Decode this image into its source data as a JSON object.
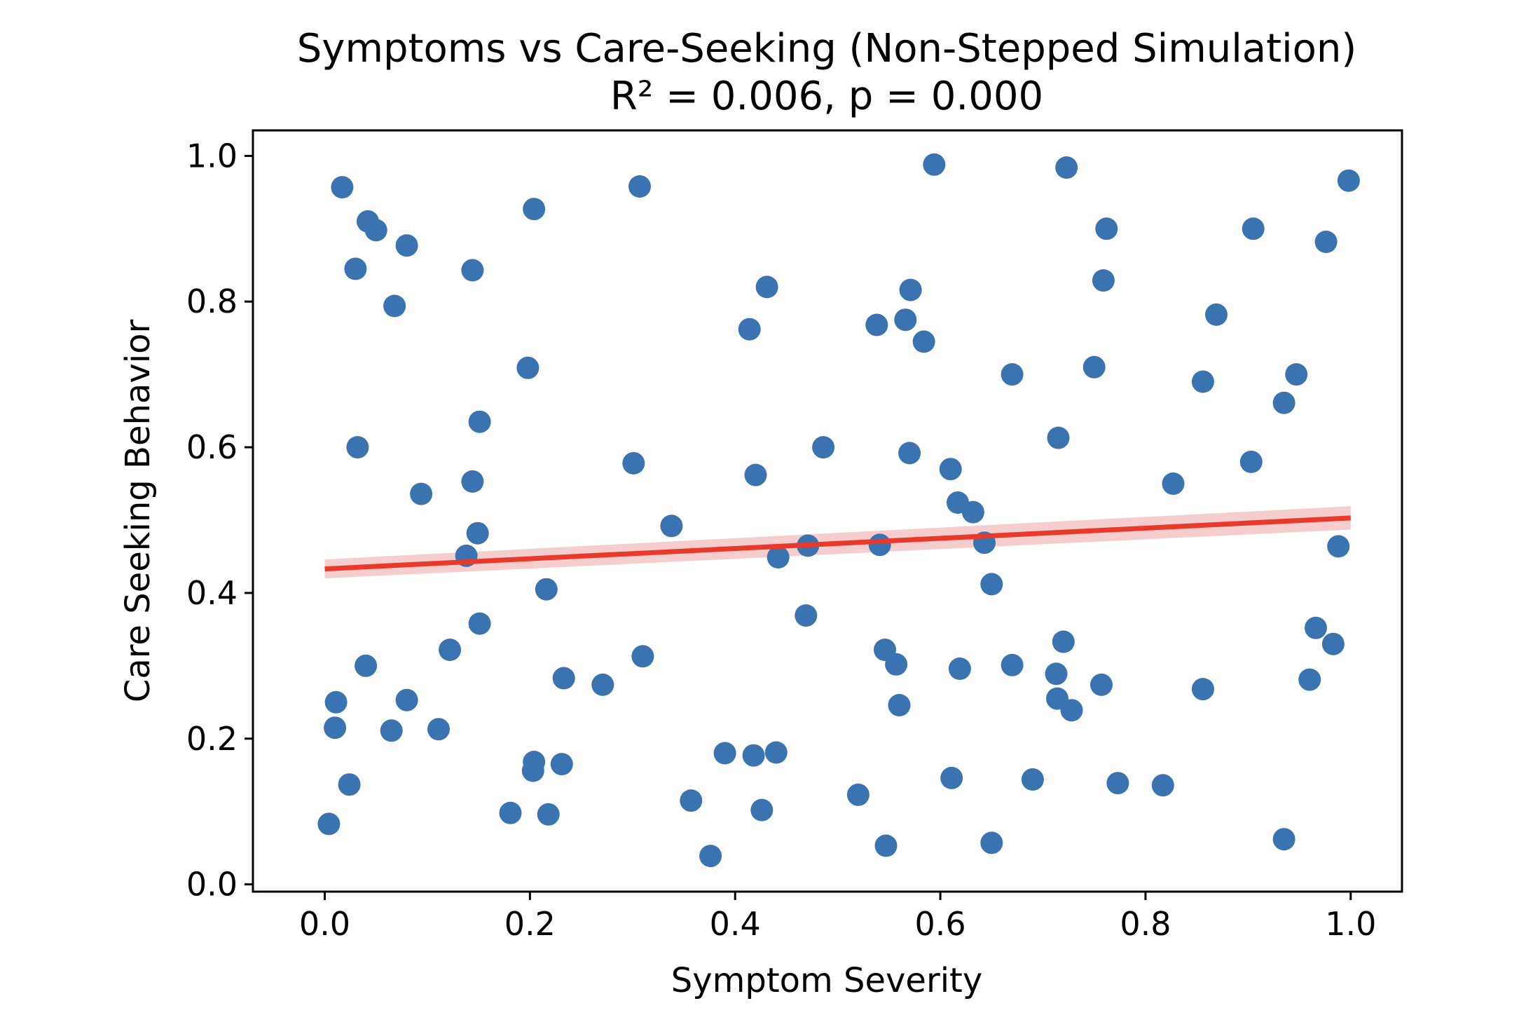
{
  "chart_data": {
    "type": "scatter",
    "title": "Symptoms vs Care-Seeking (Non-Stepped Simulation)",
    "subtitle": "R² = 0.006, p = 0.000",
    "xlabel": "Symptom Severity",
    "ylabel": "Care Seeking Behavior",
    "xlim": [
      -0.07,
      1.05
    ],
    "ylim": [
      -0.01,
      1.035
    ],
    "xticks": [
      0.0,
      0.2,
      0.4,
      0.6,
      0.8,
      1.0
    ],
    "yticks": [
      0.0,
      0.2,
      0.4,
      0.6,
      0.8,
      1.0
    ],
    "tick_labels_x": [
      "0.0",
      "0.2",
      "0.4",
      "0.6",
      "0.8",
      "1.0"
    ],
    "tick_labels_y": [
      "0.0",
      "0.2",
      "0.4",
      "0.6",
      "0.8",
      "1.0"
    ],
    "grid": false,
    "point_color": "#3b73b0",
    "line_color": "#e8392b",
    "ci_color": "#f2b8b8",
    "regression": {
      "x": [
        0.0,
        1.0
      ],
      "y": [
        0.433,
        0.503
      ],
      "ci_halfwidth": [
        0.013,
        0.016
      ]
    },
    "points": [
      [
        0.004,
        0.083
      ],
      [
        0.011,
        0.25
      ],
      [
        0.01,
        0.215
      ],
      [
        0.017,
        0.957
      ],
      [
        0.024,
        0.137
      ],
      [
        0.03,
        0.845
      ],
      [
        0.032,
        0.6
      ],
      [
        0.04,
        0.3
      ],
      [
        0.042,
        0.91
      ],
      [
        0.05,
        0.898
      ],
      [
        0.065,
        0.211
      ],
      [
        0.068,
        0.794
      ],
      [
        0.08,
        0.877
      ],
      [
        0.08,
        0.253
      ],
      [
        0.094,
        0.536
      ],
      [
        0.111,
        0.213
      ],
      [
        0.122,
        0.322
      ],
      [
        0.138,
        0.451
      ],
      [
        0.144,
        0.843
      ],
      [
        0.144,
        0.553
      ],
      [
        0.149,
        0.482
      ],
      [
        0.151,
        0.635
      ],
      [
        0.151,
        0.358
      ],
      [
        0.181,
        0.098
      ],
      [
        0.198,
        0.709
      ],
      [
        0.204,
        0.927
      ],
      [
        0.204,
        0.168
      ],
      [
        0.203,
        0.156
      ],
      [
        0.216,
        0.405
      ],
      [
        0.218,
        0.096
      ],
      [
        0.231,
        0.165
      ],
      [
        0.233,
        0.283
      ],
      [
        0.271,
        0.274
      ],
      [
        0.301,
        0.578
      ],
      [
        0.307,
        0.958
      ],
      [
        0.31,
        0.313
      ],
      [
        0.338,
        0.492
      ],
      [
        0.357,
        0.115
      ],
      [
        0.376,
        0.039
      ],
      [
        0.39,
        0.18
      ],
      [
        0.414,
        0.762
      ],
      [
        0.418,
        0.177
      ],
      [
        0.42,
        0.562
      ],
      [
        0.426,
        0.102
      ],
      [
        0.431,
        0.82
      ],
      [
        0.44,
        0.181
      ],
      [
        0.442,
        0.449
      ],
      [
        0.469,
        0.369
      ],
      [
        0.471,
        0.465
      ],
      [
        0.486,
        0.6
      ],
      [
        0.52,
        0.123
      ],
      [
        0.538,
        0.768
      ],
      [
        0.541,
        0.466
      ],
      [
        0.546,
        0.322
      ],
      [
        0.547,
        0.053
      ],
      [
        0.557,
        0.302
      ],
      [
        0.56,
        0.246
      ],
      [
        0.566,
        0.775
      ],
      [
        0.571,
        0.816
      ],
      [
        0.57,
        0.592
      ],
      [
        0.584,
        0.745
      ],
      [
        0.594,
        0.988
      ],
      [
        0.61,
        0.57
      ],
      [
        0.611,
        0.146
      ],
      [
        0.617,
        0.524
      ],
      [
        0.619,
        0.296
      ],
      [
        0.632,
        0.511
      ],
      [
        0.643,
        0.469
      ],
      [
        0.65,
        0.412
      ],
      [
        0.65,
        0.057
      ],
      [
        0.67,
        0.7
      ],
      [
        0.67,
        0.301
      ],
      [
        0.69,
        0.144
      ],
      [
        0.713,
        0.289
      ],
      [
        0.714,
        0.255
      ],
      [
        0.715,
        0.613
      ],
      [
        0.72,
        0.333
      ],
      [
        0.723,
        0.984
      ],
      [
        0.728,
        0.239
      ],
      [
        0.75,
        0.71
      ],
      [
        0.757,
        0.274
      ],
      [
        0.759,
        0.829
      ],
      [
        0.762,
        0.9
      ],
      [
        0.773,
        0.139
      ],
      [
        0.817,
        0.136
      ],
      [
        0.827,
        0.55
      ],
      [
        0.856,
        0.69
      ],
      [
        0.856,
        0.268
      ],
      [
        0.869,
        0.782
      ],
      [
        0.903,
        0.58
      ],
      [
        0.905,
        0.9
      ],
      [
        0.935,
        0.661
      ],
      [
        0.935,
        0.062
      ],
      [
        0.947,
        0.7
      ],
      [
        0.96,
        0.281
      ],
      [
        0.966,
        0.352
      ],
      [
        0.976,
        0.882
      ],
      [
        0.983,
        0.33
      ],
      [
        0.988,
        0.464
      ],
      [
        0.998,
        0.966
      ]
    ]
  }
}
